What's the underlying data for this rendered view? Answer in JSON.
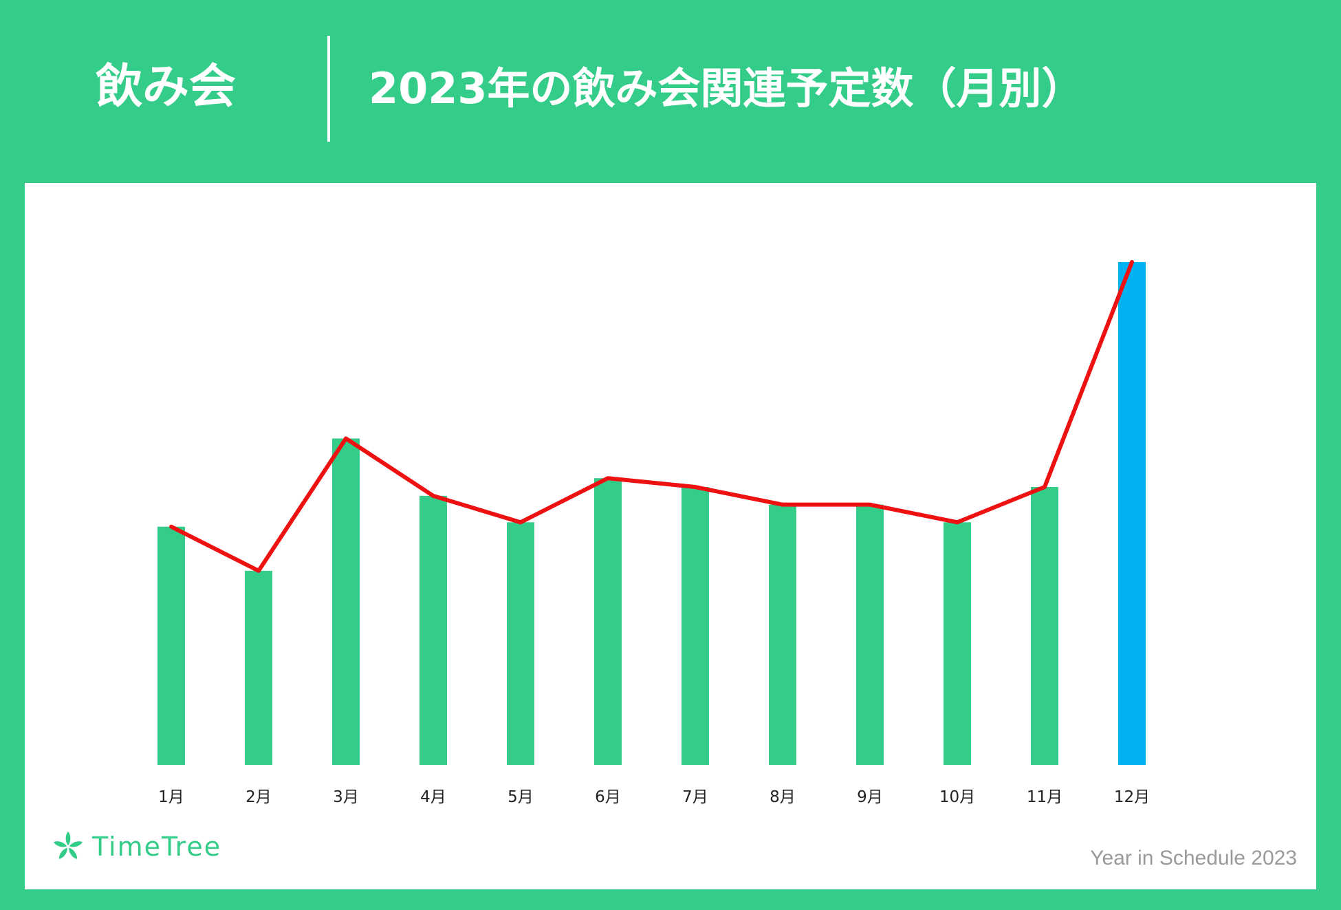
{
  "header": {
    "category": "飲み会",
    "title": "2023年の飲み会関連予定数（月別）"
  },
  "colors": {
    "background": "#33CC88",
    "bar": "#33CC88",
    "bar_highlight": "#00B2F2",
    "line": "#EE1111",
    "footer_text": "#9A9A9A"
  },
  "chart_data": {
    "type": "bar",
    "categories": [
      "1月",
      "2月",
      "3月",
      "4月",
      "5月",
      "6月",
      "7月",
      "8月",
      "9月",
      "10月",
      "11月",
      "12月"
    ],
    "values": [
      54,
      44,
      74,
      61,
      55,
      65,
      63,
      59,
      59,
      55,
      63,
      114
    ],
    "highlight_index": 11,
    "overlay": "line",
    "ylim": [
      0,
      114
    ],
    "grid": false,
    "legend": "none",
    "title": "",
    "xlabel": "",
    "ylabel": ""
  },
  "brand": {
    "logo_icon": "timetree-leaf-icon",
    "name": "TimeTree"
  },
  "footer": {
    "text": "Year in Schedule 2023"
  }
}
